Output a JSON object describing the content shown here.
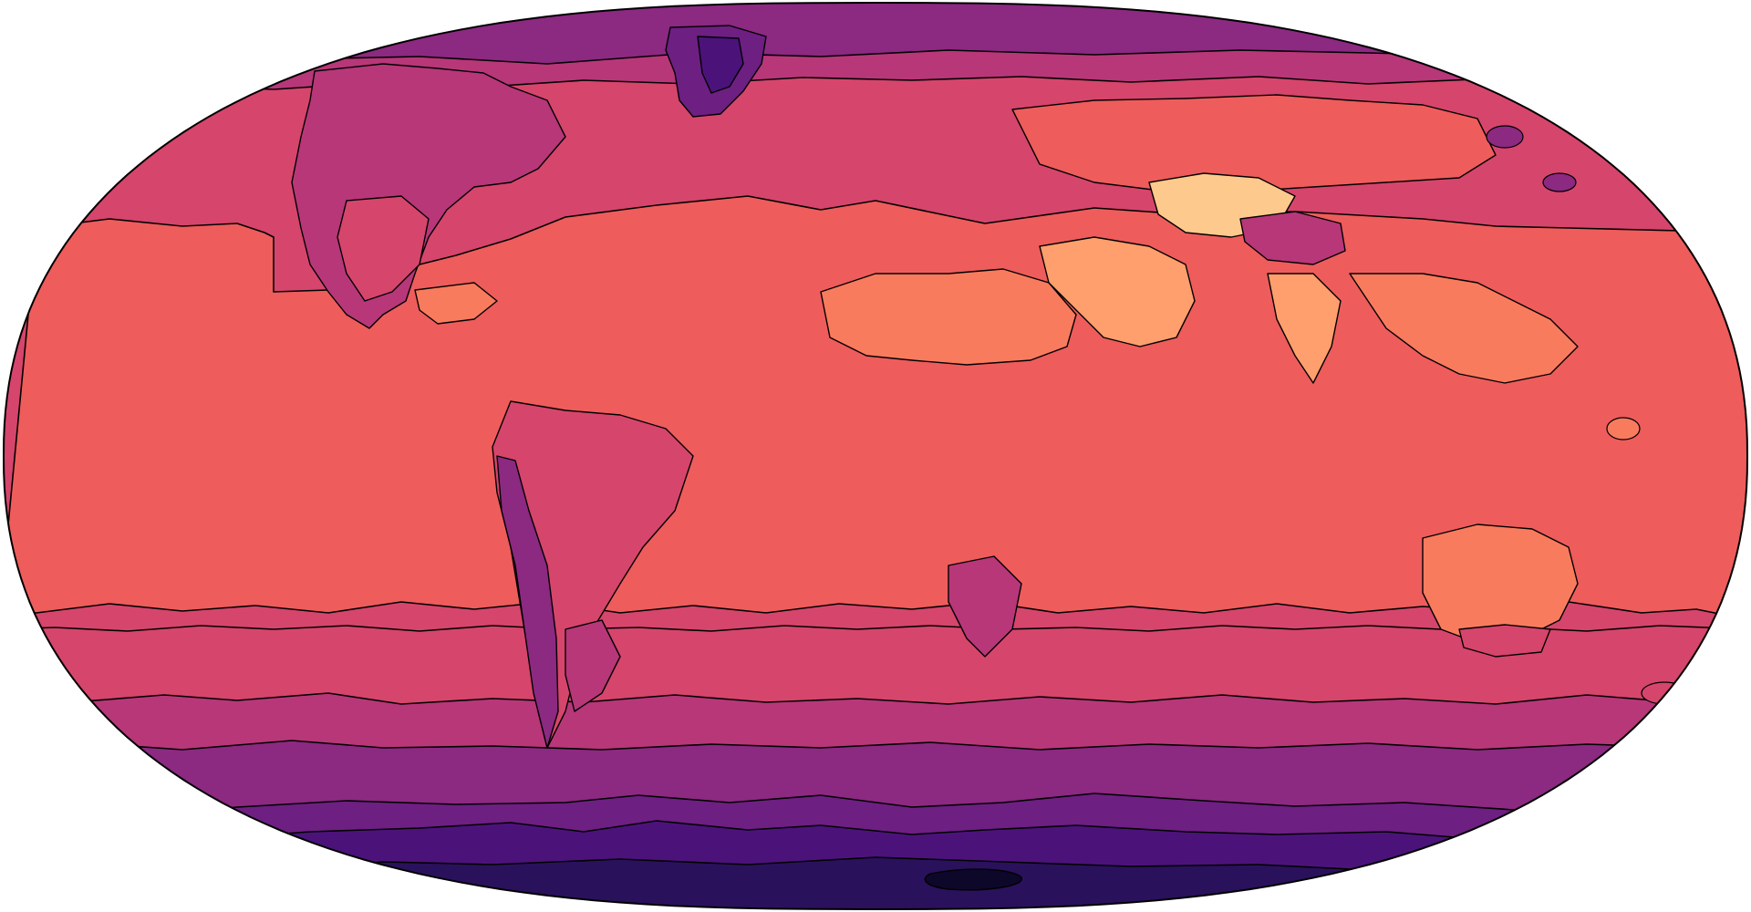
{
  "map": {
    "projection": "equal-earth",
    "colormap": "magma",
    "contour_lines": true,
    "legend": false,
    "level_colors": [
      "#0d0829",
      "#2a115c",
      "#4b137a",
      "#6d1f82",
      "#8c2981",
      "#b73779",
      "#d6456c",
      "#ee5c5c",
      "#f97b5d",
      "#fe9f6d",
      "#fec98d"
    ]
  }
}
